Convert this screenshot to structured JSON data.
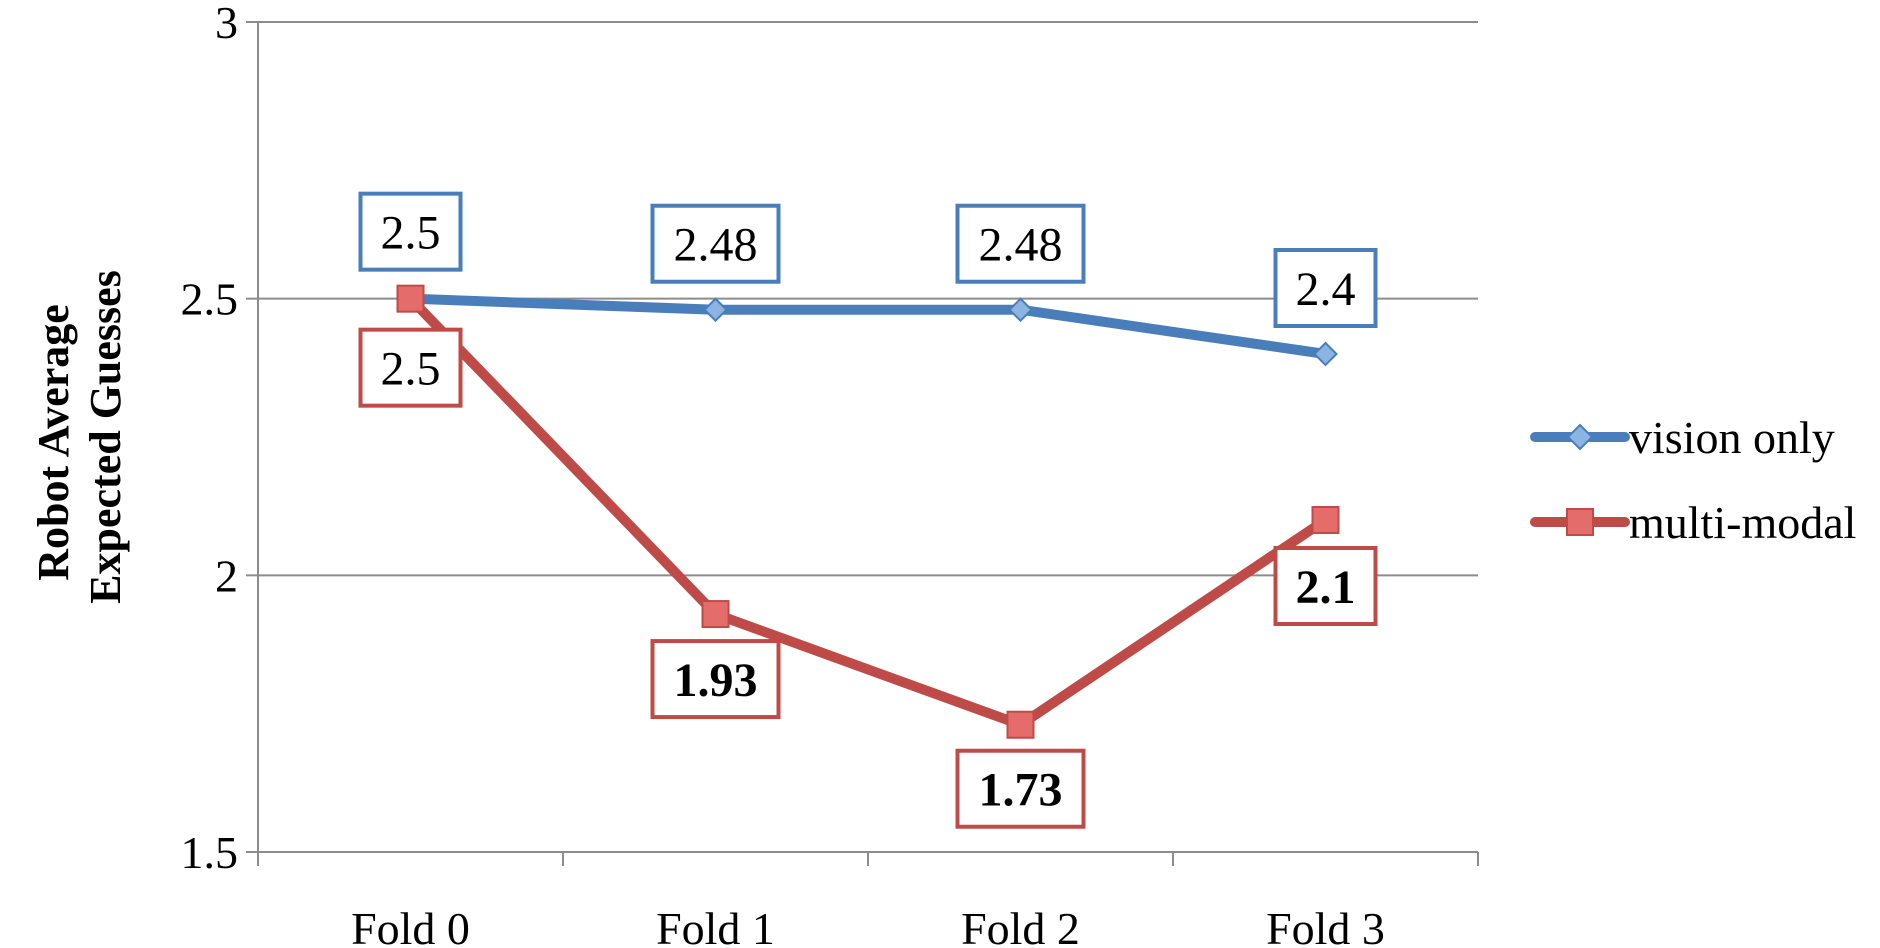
{
  "chart_data": {
    "type": "line",
    "title": "",
    "xlabel": "",
    "ylabel": [
      "Robot Average",
      "Expected Guesses"
    ],
    "categories": [
      "Fold 0",
      "Fold 1",
      "Fold 2",
      "Fold 3"
    ],
    "ylim": [
      1.5,
      3
    ],
    "yticks": [
      "1.5",
      "2",
      "2.5",
      "3"
    ],
    "grid": true,
    "legend_position": "right",
    "series": [
      {
        "name": "vision only",
        "values": [
          2.5,
          2.48,
          2.48,
          2.4
        ],
        "labels": [
          "2.5",
          "2.48",
          "2.48",
          "2.4"
        ],
        "label_position": "above",
        "label_bold": false,
        "marker": "diamond",
        "color": "#4a7ebb",
        "marker_fill": "#8db3e2"
      },
      {
        "name": "multi-modal",
        "values": [
          2.5,
          1.93,
          1.73,
          2.1
        ],
        "labels": [
          "2.5",
          "1.93",
          "1.73",
          "2.1"
        ],
        "label_position": "below",
        "label_bold": true,
        "bold_except_first": true,
        "marker": "square",
        "color": "#be4b48",
        "marker_fill": "#e46c6a"
      }
    ]
  }
}
